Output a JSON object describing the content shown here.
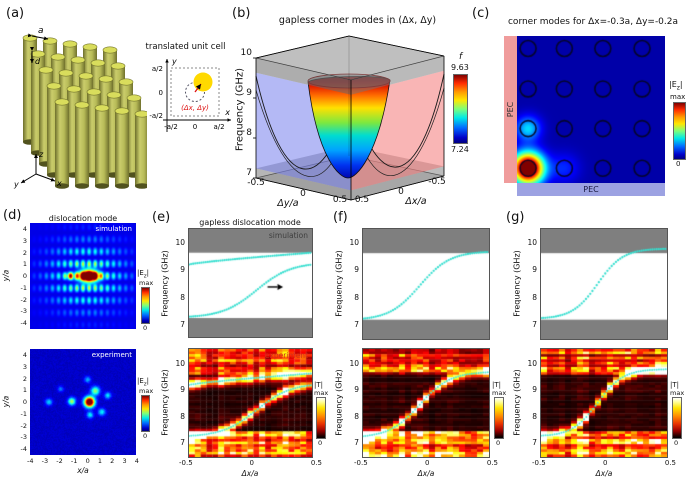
{
  "panels": {
    "a": {
      "label": "(a)",
      "inset_title": "translated unit cell",
      "lattice_label": "a",
      "diameter_label": "d",
      "axis_triad": {
        "x": "x",
        "y": "y",
        "z": "z"
      },
      "inset": {
        "xlabel": "x",
        "ylabel": "y",
        "x_ticks": [
          "-a/2",
          "0",
          "a/2"
        ],
        "y_ticks": [
          "a/2",
          "0",
          "-a/2"
        ],
        "offset_label": "(Δx, Δy)"
      }
    },
    "b": {
      "label": "(b)"
    },
    "c": {
      "label": "(c)"
    },
    "d": {
      "label": "(d)",
      "title": "dislocation mode"
    },
    "e": {
      "label": "(e)",
      "title": "gapless dislocation mode"
    },
    "f": {
      "label": "(f)"
    },
    "g": {
      "label": "(g)"
    }
  },
  "chart_data": [
    {
      "id": "b",
      "type": "surface3d",
      "title": "gapless corner modes in (Δx, Δy)",
      "zlabel": "Frequency (GHz)",
      "zticks": [
        "10",
        "9",
        "8",
        "7"
      ],
      "zlim": [
        7,
        10
      ],
      "axis_dy": {
        "label": "Δy/a",
        "ticks": [
          "-0.5",
          "0",
          "0.5"
        ]
      },
      "axis_dx": {
        "label": "Δx/a",
        "ticks": [
          "0.5",
          "0",
          "-0.5"
        ]
      },
      "colorbar": {
        "label": "f",
        "max": "9.63",
        "min": "7.24",
        "colormap": "jet"
      },
      "surface": {
        "corner_mode_min_ghz": 7.24,
        "corner_mode_max_ghz": 9.63,
        "description": "rainbow paraboloid valley: corner-mode frequency vs (Δx,Δy); blue translucent sheet: dispersion vs Δy; red translucent sheet: dispersion vs Δx; gray slabs: bulk bands below 7.24 GHz and above 9.63 GHz"
      }
    },
    {
      "id": "c",
      "type": "corner-field",
      "title": "corner modes for Δx=-0.3a, Δy=-0.2a",
      "boundary_left": "PEC",
      "boundary_bottom": "PEC",
      "colorbar": {
        "label_pre": "|E",
        "label_sub": "z",
        "label_post": "|",
        "max": "max",
        "min": "0",
        "colormap": "jet"
      },
      "rods": {
        "cols": [
          0.075,
          0.32,
          0.58,
          0.845
        ],
        "rows": [
          0.085,
          0.36,
          0.63,
          0.9
        ],
        "radius": 0.054
      },
      "hotspots": [
        {
          "x": 0.075,
          "y": 0.9,
          "amp": 1.15,
          "s2": 0.011
        },
        {
          "x": 0.075,
          "y": 0.63,
          "amp": 0.3,
          "s2": 0.007
        },
        {
          "x": 0.32,
          "y": 0.9,
          "amp": 0.12,
          "s2": 0.01
        }
      ]
    },
    {
      "id": "d-sim",
      "type": "field-sim",
      "corner_label": "simulation",
      "ylabel": "y/a",
      "yticks": [
        "4",
        "3",
        "2",
        "1",
        "0",
        "-1",
        "-2",
        "-3",
        "-4"
      ],
      "xlim": [
        -4.5,
        4.5
      ],
      "ylim": [
        -4.5,
        4.5
      ],
      "colorbar": {
        "label_pre": "|E",
        "label_sub": "z",
        "label_post": "|",
        "max": "max",
        "min": "0",
        "colormap": "jet"
      },
      "spots": [
        {
          "x": 0.5,
          "y": 0,
          "amp": 1.3,
          "sx": 0.8,
          "sy": 0.5
        },
        {
          "x": -1.1,
          "y": 0,
          "amp": 0.45,
          "sx": 0.3,
          "sy": 0.3
        }
      ],
      "stripes": {
        "amp": 0.55,
        "cx": 0.3,
        "sx": 3.2,
        "sy": 2.8,
        "period": 1.05,
        "vper": 0.52
      }
    },
    {
      "id": "d-exp",
      "type": "spot-map",
      "corner_label": "experiment",
      "xlabel": "x/a",
      "ylabel": "y/a",
      "xticks": [
        "-4",
        "-3",
        "-2",
        "-1",
        "0",
        "1",
        "2",
        "3",
        "4"
      ],
      "yticks": [
        "4",
        "3",
        "2",
        "1",
        "0",
        "-1",
        "-2",
        "-3",
        "-4"
      ],
      "xlim": [
        -4.5,
        4.5
      ],
      "ylim": [
        -4.5,
        4.5
      ],
      "colorbar": {
        "label_pre": "|E",
        "label_sub": "z",
        "label_post": "|",
        "max": "max",
        "min": "0",
        "colormap": "jet"
      },
      "spots": [
        {
          "x": 0.55,
          "y": 0,
          "amp": 1.2,
          "s": 0.3
        },
        {
          "x": -0.95,
          "y": 0.05,
          "amp": 0.5,
          "s": 0.22
        },
        {
          "x": 1.05,
          "y": 0.95,
          "amp": 0.45,
          "s": 0.26
        },
        {
          "x": 1.6,
          "y": -0.85,
          "amp": 0.3,
          "s": 0.22
        },
        {
          "x": -2.9,
          "y": 0,
          "amp": 0.28,
          "s": 0.2
        },
        {
          "x": 2.1,
          "y": 0.55,
          "amp": 0.28,
          "s": 0.2
        },
        {
          "x": 0.4,
          "y": 1.9,
          "amp": 0.22,
          "s": 0.2
        },
        {
          "x": -1.9,
          "y": 1.1,
          "amp": 0.18,
          "s": 0.18
        },
        {
          "x": 0.6,
          "y": -1.1,
          "amp": 0.3,
          "s": 0.2
        }
      ]
    },
    {
      "id": "e-top",
      "type": "dispersion",
      "corner_label": "simulation",
      "ylabel": "Frequency (GHz)",
      "yticks": [
        "10",
        "9",
        "8",
        "7"
      ],
      "xlim": [
        -0.5,
        0.5
      ],
      "ylim": [
        6.45,
        10.55
      ],
      "bulk_bands": [
        [
          9.65,
          10.55
        ],
        [
          6.45,
          7.17
        ]
      ],
      "series": [
        {
          "name": "edge branch",
          "kind": "pow",
          "f0": 9.2,
          "df": 0.45,
          "p": 0.8
        },
        {
          "name": "dislocation branch",
          "kind": "sigmoid",
          "fmin": 7.18,
          "fmax": 9.28,
          "x0": 0.05,
          "w": 0.14
        }
      ],
      "arrow": {
        "x": 0.22,
        "y": 8.35
      }
    },
    {
      "id": "e-exp",
      "type": "transmission",
      "corner_label": "experiment",
      "seed": 11,
      "xlabel": "Δx/a",
      "xticks": [
        "-0.5",
        "0",
        "0.5"
      ],
      "ylabel": "Frequency (GHz)",
      "yticks": [
        "10",
        "9",
        "8",
        "7"
      ],
      "xlim": [
        -0.5,
        0.5
      ],
      "ylim": [
        6.4,
        10.6
      ],
      "colorbar": {
        "label": "|T|",
        "max": "max",
        "min": "0",
        "colormap": "hot"
      },
      "overlay": [
        {
          "kind": "pow",
          "f0": 9.2,
          "df": 0.45,
          "p": 0.8
        },
        {
          "kind": "sigmoid",
          "fmin": 7.18,
          "fmax": 9.28,
          "x0": 0.05,
          "w": 0.14
        }
      ]
    },
    {
      "id": "f-top",
      "type": "dispersion",
      "ylabel": "Frequency (GHz)",
      "yticks": [
        "10",
        "9",
        "8",
        "7"
      ],
      "xlim": [
        -0.5,
        0.5
      ],
      "ylim": [
        6.45,
        10.55
      ],
      "bulk_bands": [
        [
          9.65,
          10.55
        ],
        [
          6.45,
          7.17
        ]
      ],
      "series": [
        {
          "name": "dislocation branch",
          "kind": "sigmoid",
          "fmin": 7.15,
          "fmax": 9.72,
          "x0": -0.05,
          "w": 0.12
        }
      ]
    },
    {
      "id": "f-exp",
      "type": "transmission",
      "seed": 23,
      "xlabel": "Δx/a",
      "xticks": [
        "-0.5",
        "0",
        "0.5"
      ],
      "ylabel": "Frequency (GHz)",
      "yticks": [
        "10",
        "9",
        "8",
        "7"
      ],
      "xlim": [
        -0.5,
        0.5
      ],
      "ylim": [
        6.4,
        10.6
      ],
      "colorbar": {
        "label": "|T|",
        "max": "max",
        "min": "0",
        "colormap": "hot"
      },
      "overlay": [
        {
          "kind": "sigmoid",
          "fmin": 7.15,
          "fmax": 9.72,
          "x0": -0.05,
          "w": 0.12
        }
      ]
    },
    {
      "id": "g-top",
      "type": "dispersion",
      "ylabel": "Frequency (GHz)",
      "yticks": [
        "10",
        "9",
        "8",
        "7"
      ],
      "xlim": [
        -0.5,
        0.5
      ],
      "ylim": [
        6.45,
        10.55
      ],
      "bulk_bands": [
        [
          9.65,
          10.55
        ],
        [
          6.45,
          7.17
        ]
      ],
      "series": [
        {
          "name": "dislocation branch",
          "kind": "sigmoid",
          "fmin": 7.2,
          "fmax": 9.82,
          "x0": -0.05,
          "w": 0.1
        }
      ]
    },
    {
      "id": "g-exp",
      "type": "transmission",
      "seed": 37,
      "xlabel": "Δx/a",
      "xticks": [
        "-0.5",
        "0",
        "0.5"
      ],
      "ylabel": "Frequency (GHz)",
      "yticks": [
        "10",
        "9",
        "8",
        "7"
      ],
      "xlim": [
        -0.5,
        0.5
      ],
      "ylim": [
        6.4,
        10.6
      ],
      "colorbar": {
        "label": "|T|",
        "max": "max",
        "min": "0",
        "colormap": "hot"
      },
      "overlay": [
        {
          "kind": "sigmoid",
          "fmin": 7.2,
          "fmax": 9.82,
          "x0": -0.05,
          "w": 0.1
        }
      ]
    }
  ]
}
